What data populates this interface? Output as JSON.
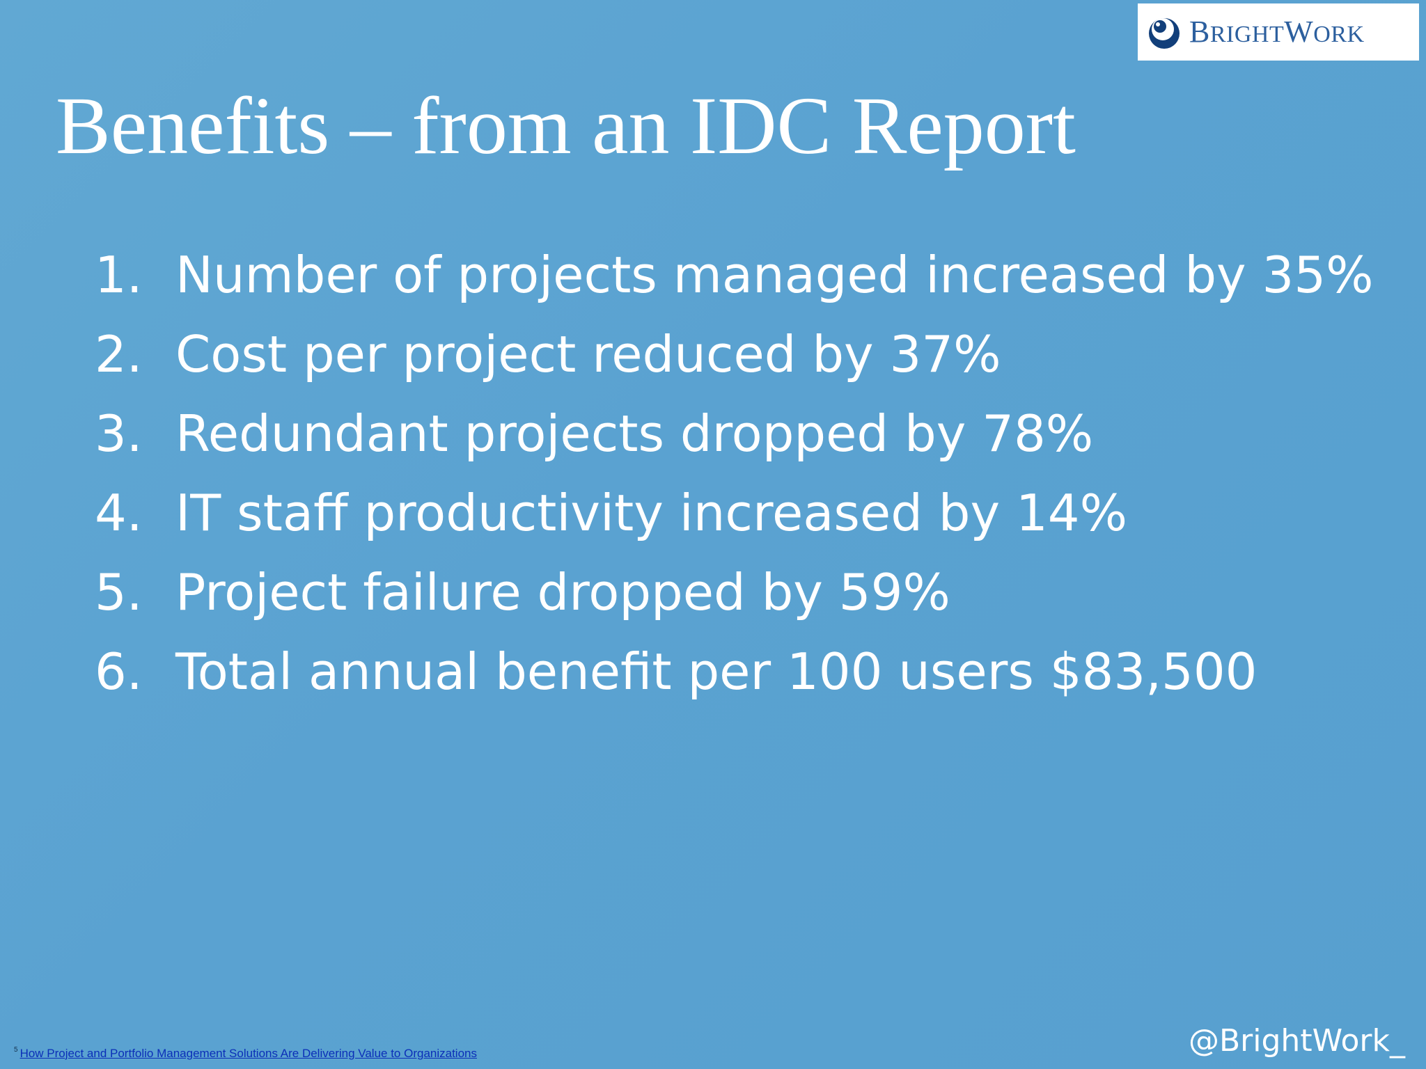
{
  "logo": {
    "wordmark_b": "B",
    "wordmark_right": "RIGHT",
    "wordmark_w": "W",
    "wordmark_ork": "ORK",
    "icon": "brightwork-logo-circle"
  },
  "title": "Benefits – from an IDC Report",
  "benefits": [
    {
      "num": "1.",
      "text": "Number of projects managed increased by 35%"
    },
    {
      "num": "2.",
      "text": "Cost per project reduced by 37%"
    },
    {
      "num": "3.",
      "text": "Redundant projects dropped by 78%"
    },
    {
      "num": "4.",
      "text": "IT staff productivity increased by 14%"
    },
    {
      "num": "5.",
      "text": "Project failure dropped by 59%"
    },
    {
      "num": "6.",
      "text": "Total annual benefit per 100 users $83,500"
    }
  ],
  "footnote": {
    "marker": "5",
    "link_text": "How Project and Portfolio Management Solutions Are Delivering Value to Organizations"
  },
  "handle": "@BrightWork_",
  "colors": {
    "background": "#5aa2d1",
    "text": "#ffffff",
    "logo_blue": "#2c5f9e",
    "link": "#0b2fb8"
  }
}
